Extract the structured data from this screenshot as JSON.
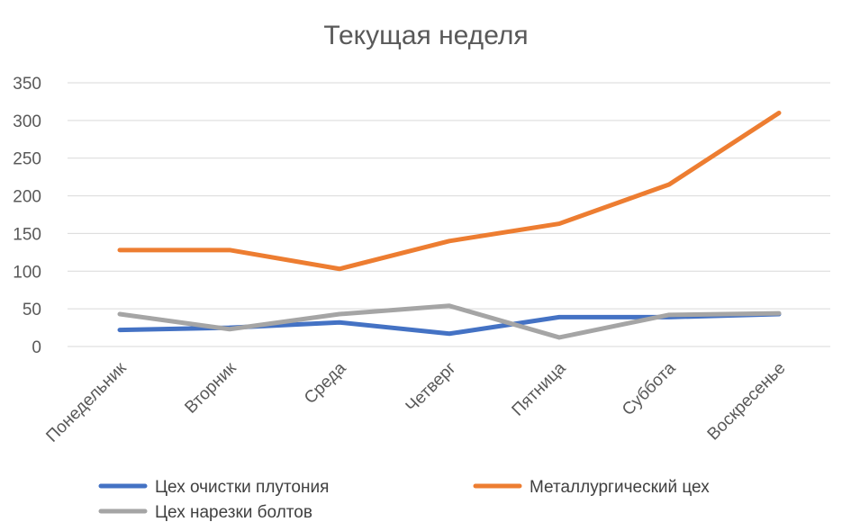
{
  "chart_data": {
    "type": "line",
    "title": "Текущая неделя",
    "categories": [
      "Понедельник",
      "Вторник",
      "Среда",
      "Четверг",
      "Пятница",
      "Суббота",
      "Воскресенье"
    ],
    "ylim": [
      0,
      350
    ],
    "yticks": [
      "0",
      "50",
      "100",
      "150",
      "200",
      "250",
      "300",
      "350"
    ],
    "grid": true,
    "legend_position": "bottom",
    "series": [
      {
        "name": "Цех очистки плутония",
        "color": "#4472c4",
        "values": [
          22,
          25,
          32,
          17,
          39,
          39,
          43
        ]
      },
      {
        "name": "Металлургический цех",
        "color": "#ed7d31",
        "values": [
          128,
          128,
          103,
          140,
          163,
          215,
          310
        ]
      },
      {
        "name": "Цех нарезки болтов",
        "color": "#a5a5a5",
        "values": [
          43,
          23,
          43,
          54,
          12,
          42,
          44
        ]
      }
    ]
  }
}
